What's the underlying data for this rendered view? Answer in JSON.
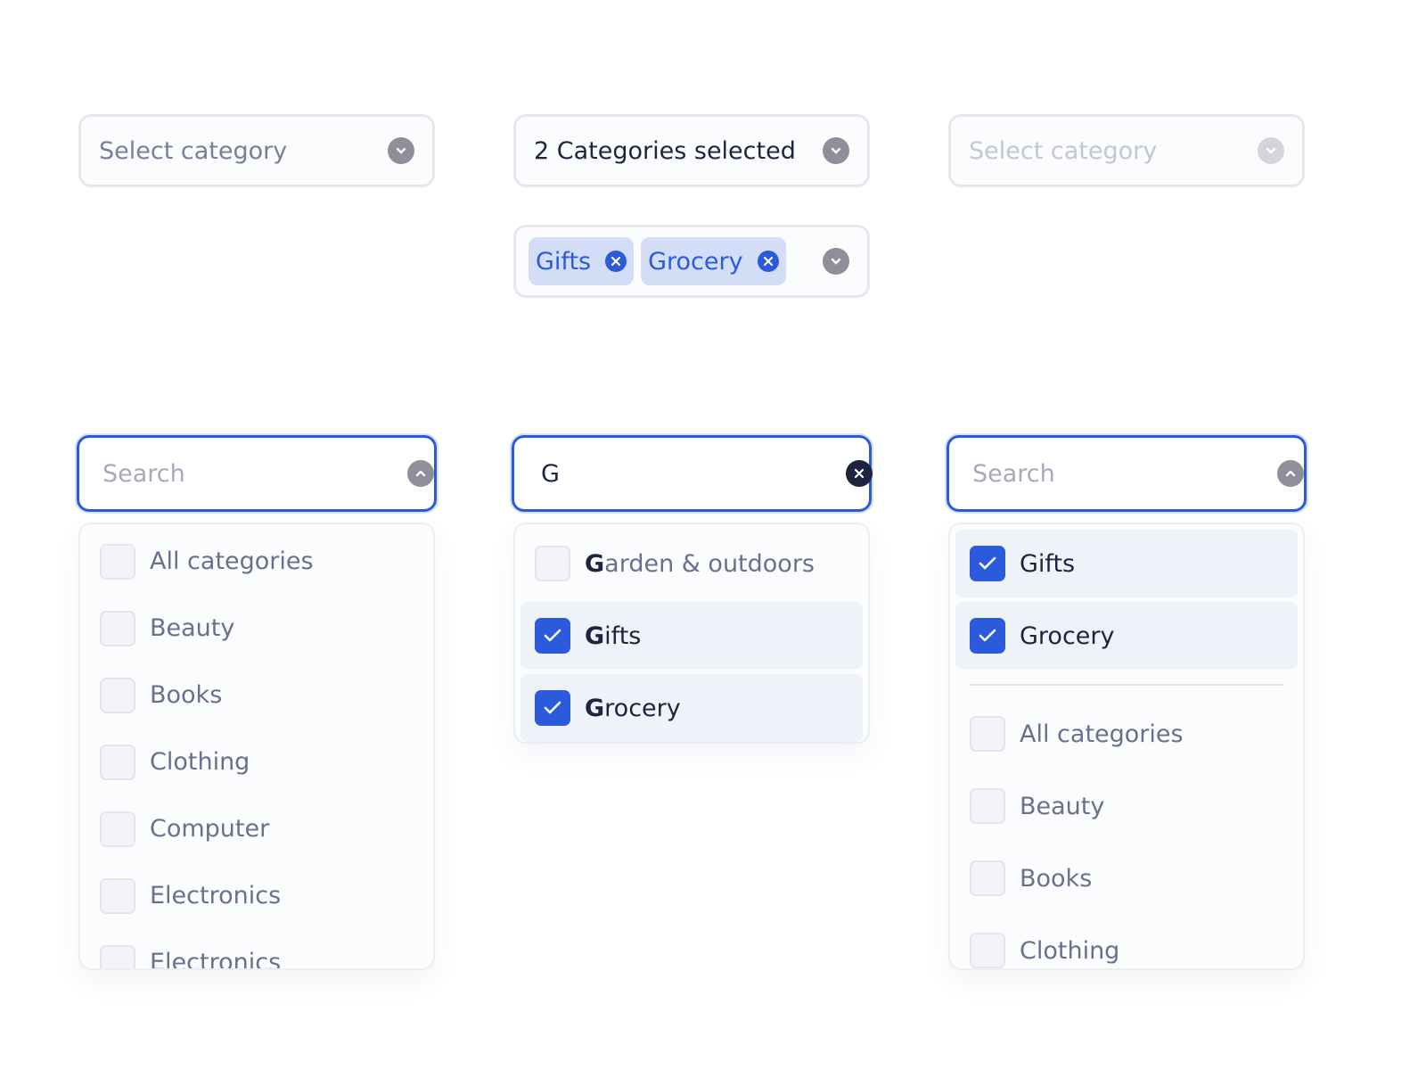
{
  "colors": {
    "accent": "#2b5bdb",
    "tag_bg": "#d4ddf6"
  },
  "row1": {
    "default": {
      "placeholder": "Select category",
      "icon": "chevron-down-icon"
    },
    "selected": {
      "value": "2 Categories selected",
      "icon": "chevron-down-icon"
    },
    "disabled": {
      "placeholder": "Select category",
      "icon": "chevron-down-icon"
    }
  },
  "tags": [
    {
      "label": "Gifts"
    },
    {
      "label": "Grocery"
    }
  ],
  "col1": {
    "search_placeholder": "Search",
    "items": [
      "All categories",
      "Beauty",
      "Books",
      "Clothing",
      "Computer",
      "Electronics",
      "Electronics"
    ]
  },
  "col2": {
    "search_value": "G",
    "items": [
      {
        "match": "G",
        "rest": "arden & outdoors",
        "checked": false
      },
      {
        "match": "G",
        "rest": "ifts",
        "checked": true
      },
      {
        "match": "G",
        "rest": "rocery",
        "checked": true
      }
    ]
  },
  "col3": {
    "search_placeholder": "Search",
    "selected": [
      "Gifts",
      "Grocery"
    ],
    "items": [
      "All categories",
      "Beauty",
      "Books",
      "Clothing"
    ]
  }
}
